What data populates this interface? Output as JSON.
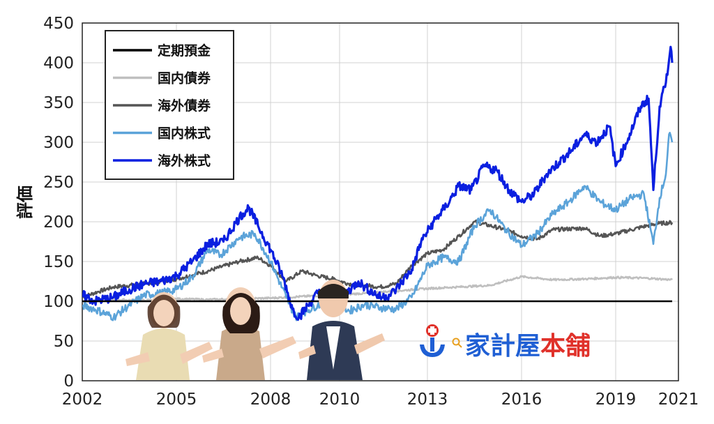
{
  "chart_data": {
    "type": "line",
    "title": "",
    "xlabel": "",
    "ylabel": "評価",
    "ylim": [
      0,
      450
    ],
    "xlim": [
      2002,
      2021
    ],
    "yticks": [
      0,
      50,
      100,
      150,
      200,
      250,
      300,
      350,
      400,
      450
    ],
    "xticks": [
      {
        "label": "2002",
        "value": 2002
      },
      {
        "label": "2005",
        "value": 2005
      },
      {
        "label": "2008",
        "value": 2008
      },
      {
        "label": "2010",
        "value": 2010.2
      },
      {
        "label": "2013",
        "value": 2013
      },
      {
        "label": "2016",
        "value": 2016
      },
      {
        "label": "2019",
        "value": 2019
      },
      {
        "label": "2021",
        "value": 2021
      }
    ],
    "grid": true,
    "legend_position": "top-left",
    "series": [
      {
        "name": "定期預金",
        "color": "#000000",
        "points": [
          [
            2002,
            100
          ],
          [
            2005,
            100
          ],
          [
            2008,
            100
          ],
          [
            2010,
            100
          ],
          [
            2013,
            100
          ],
          [
            2016,
            100
          ],
          [
            2019,
            100
          ],
          [
            2020.8,
            100
          ]
        ]
      },
      {
        "name": "国内債券",
        "color": "#bfbfbf",
        "points": [
          [
            2002,
            100
          ],
          [
            2003,
            102
          ],
          [
            2004,
            101
          ],
          [
            2005,
            103
          ],
          [
            2006,
            102
          ],
          [
            2007,
            103
          ],
          [
            2008,
            104
          ],
          [
            2009,
            106
          ],
          [
            2010,
            108
          ],
          [
            2011,
            110
          ],
          [
            2012,
            113
          ],
          [
            2013,
            116
          ],
          [
            2014,
            118
          ],
          [
            2015,
            120
          ],
          [
            2016,
            131
          ],
          [
            2017,
            127
          ],
          [
            2018,
            128
          ],
          [
            2019,
            130
          ],
          [
            2020,
            129
          ],
          [
            2020.8,
            127
          ]
        ]
      },
      {
        "name": "海外債券",
        "color": "#555555",
        "points": [
          [
            2002,
            105
          ],
          [
            2002.5,
            112
          ],
          [
            2003,
            118
          ],
          [
            2004,
            122
          ],
          [
            2005,
            128
          ],
          [
            2006,
            138
          ],
          [
            2007,
            150
          ],
          [
            2007.6,
            155
          ],
          [
            2008,
            145
          ],
          [
            2008.5,
            125
          ],
          [
            2009,
            138
          ],
          [
            2009.5,
            132
          ],
          [
            2010,
            128
          ],
          [
            2010.5,
            122
          ],
          [
            2011,
            120
          ],
          [
            2011.5,
            118
          ],
          [
            2012,
            122
          ],
          [
            2012.5,
            145
          ],
          [
            2013,
            160
          ],
          [
            2013.5,
            165
          ],
          [
            2014,
            182
          ],
          [
            2014.5,
            200
          ],
          [
            2015,
            195
          ],
          [
            2015.5,
            190
          ],
          [
            2016,
            182
          ],
          [
            2016.5,
            178
          ],
          [
            2017,
            190
          ],
          [
            2018,
            192
          ],
          [
            2018.5,
            182
          ],
          [
            2019,
            185
          ],
          [
            2019.5,
            190
          ],
          [
            2020,
            195
          ],
          [
            2020.4,
            198
          ],
          [
            2020.8,
            199
          ]
        ]
      },
      {
        "name": "国内株式",
        "color": "#5ba3d9",
        "points": [
          [
            2002,
            95
          ],
          [
            2002.4,
            90
          ],
          [
            2003,
            80
          ],
          [
            2003.5,
            95
          ],
          [
            2004,
            108
          ],
          [
            2004.5,
            110
          ],
          [
            2005,
            115
          ],
          [
            2005.5,
            130
          ],
          [
            2006,
            165
          ],
          [
            2006.4,
            158
          ],
          [
            2007,
            180
          ],
          [
            2007.5,
            185
          ],
          [
            2008,
            150
          ],
          [
            2008.5,
            105
          ],
          [
            2008.8,
            80
          ],
          [
            2009,
            85
          ],
          [
            2009.5,
            95
          ],
          [
            2010,
            100
          ],
          [
            2010.5,
            88
          ],
          [
            2011,
            96
          ],
          [
            2011.5,
            92
          ],
          [
            2012,
            90
          ],
          [
            2012.5,
            105
          ],
          [
            2013,
            145
          ],
          [
            2013.5,
            155
          ],
          [
            2014,
            150
          ],
          [
            2014.5,
            195
          ],
          [
            2015,
            215
          ],
          [
            2015.5,
            190
          ],
          [
            2016,
            170
          ],
          [
            2016.5,
            185
          ],
          [
            2017,
            210
          ],
          [
            2017.5,
            225
          ],
          [
            2018,
            245
          ],
          [
            2018.5,
            225
          ],
          [
            2019,
            215
          ],
          [
            2019.5,
            230
          ],
          [
            2019.9,
            235
          ],
          [
            2020.2,
            172
          ],
          [
            2020.4,
            230
          ],
          [
            2020.6,
            260
          ],
          [
            2020.7,
            310
          ],
          [
            2020.8,
            300
          ]
        ]
      },
      {
        "name": "海外株式",
        "color": "#0a1fe0",
        "points": [
          [
            2002,
            108
          ],
          [
            2002.4,
            100
          ],
          [
            2003,
            105
          ],
          [
            2003.5,
            115
          ],
          [
            2004,
            122
          ],
          [
            2004.5,
            125
          ],
          [
            2005,
            132
          ],
          [
            2005.5,
            150
          ],
          [
            2006,
            172
          ],
          [
            2006.5,
            175
          ],
          [
            2007,
            205
          ],
          [
            2007.3,
            218
          ],
          [
            2007.6,
            195
          ],
          [
            2008,
            165
          ],
          [
            2008.4,
            130
          ],
          [
            2008.7,
            90
          ],
          [
            2008.9,
            80
          ],
          [
            2009.2,
            95
          ],
          [
            2009.5,
            110
          ],
          [
            2010,
            118
          ],
          [
            2010.4,
            110
          ],
          [
            2010.8,
            125
          ],
          [
            2011,
            118
          ],
          [
            2011.5,
            105
          ],
          [
            2011.8,
            108
          ],
          [
            2012,
            115
          ],
          [
            2012.5,
            140
          ],
          [
            2012.8,
            175
          ],
          [
            2013.2,
            200
          ],
          [
            2013.6,
            220
          ],
          [
            2014,
            245
          ],
          [
            2014.4,
            240
          ],
          [
            2014.8,
            270
          ],
          [
            2015.2,
            265
          ],
          [
            2015.6,
            240
          ],
          [
            2016,
            225
          ],
          [
            2016.4,
            235
          ],
          [
            2016.8,
            260
          ],
          [
            2017.2,
            275
          ],
          [
            2017.6,
            290
          ],
          [
            2018,
            310
          ],
          [
            2018.4,
            300
          ],
          [
            2018.8,
            320
          ],
          [
            2019,
            270
          ],
          [
            2019.4,
            305
          ],
          [
            2019.8,
            345
          ],
          [
            2020.05,
            355
          ],
          [
            2020.2,
            240
          ],
          [
            2020.4,
            345
          ],
          [
            2020.6,
            375
          ],
          [
            2020.75,
            420
          ],
          [
            2020.8,
            400
          ]
        ]
      }
    ]
  },
  "overlay": {
    "brand_part1": "家計屋",
    "brand_part2": "本舗",
    "brand_color1": "#1f5fd4",
    "brand_color2": "#e0312a",
    "logo_icon": "anchor-logo-icon",
    "photo": "three-presenters-photo"
  }
}
